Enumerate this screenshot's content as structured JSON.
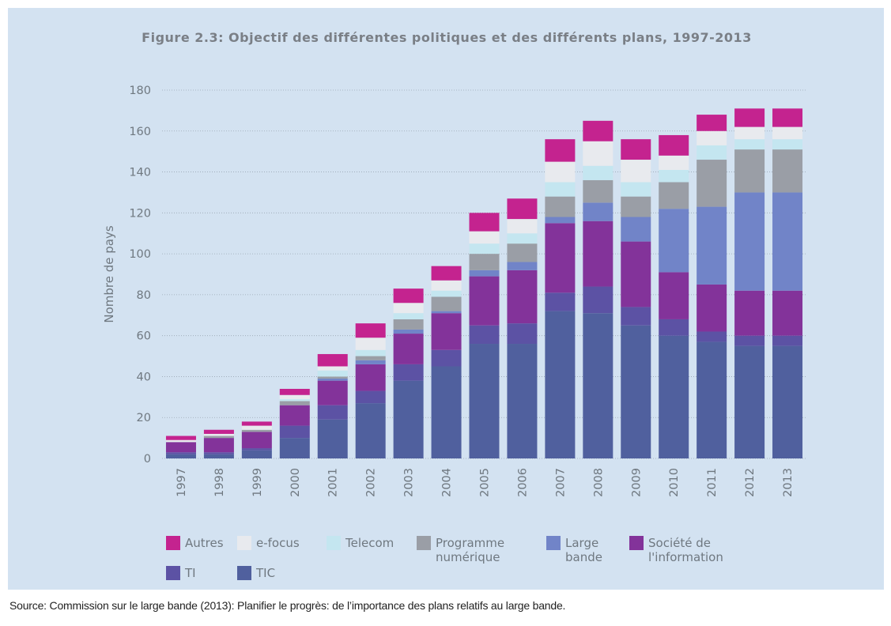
{
  "chart_data": {
    "type": "stacked_bar",
    "title": "Figure 2.3: Objectif des différentes politiques et des différents plans, 1997-2013",
    "ylabel": "Nombre de pays",
    "source": "Source: Commission sur le large bande (2013): Planifier le progrès: de l’importance des plans relatifs au large bande.",
    "categories": [
      "1997",
      "1998",
      "1999",
      "2000",
      "2001",
      "2002",
      "2003",
      "2004",
      "2005",
      "2006",
      "2007",
      "2008",
      "2009",
      "2010",
      "2011",
      "2012",
      "2013"
    ],
    "series": [
      {
        "name": "TIC",
        "color": "#50609e",
        "values": [
          2,
          2,
          4,
          10,
          19,
          27,
          38,
          45,
          56,
          56,
          72,
          71,
          65,
          60,
          57,
          55,
          55
        ]
      },
      {
        "name": "TI",
        "color": "#5c52a4",
        "values": [
          1,
          1,
          1,
          6,
          7,
          6,
          8,
          8,
          9,
          10,
          9,
          13,
          9,
          8,
          5,
          5,
          5
        ]
      },
      {
        "name": "Société de l'information",
        "color": "#83339a",
        "values": [
          5,
          7,
          8,
          10,
          12,
          13,
          15,
          18,
          24,
          26,
          34,
          32,
          32,
          23,
          23,
          22,
          22
        ]
      },
      {
        "name": "Large bande",
        "color": "#7184c8",
        "values": [
          0,
          0,
          0,
          0,
          1,
          2,
          2,
          1,
          3,
          4,
          3,
          9,
          12,
          31,
          38,
          48,
          48
        ]
      },
      {
        "name": "Programme numérique",
        "color": "#9a9ea6",
        "values": [
          0,
          1,
          1,
          2,
          1,
          2,
          5,
          7,
          8,
          9,
          10,
          11,
          10,
          13,
          23,
          21,
          21
        ]
      },
      {
        "name": "Telecom",
        "color": "#c4e6f0",
        "values": [
          0,
          0,
          0,
          1,
          3,
          3,
          3,
          3,
          5,
          5,
          7,
          7,
          7,
          6,
          7,
          5,
          5
        ]
      },
      {
        "name": "e-focus",
        "color": "#e8eaee",
        "values": [
          1,
          1,
          2,
          2,
          2,
          6,
          5,
          5,
          6,
          7,
          10,
          12,
          11,
          7,
          7,
          6,
          6
        ]
      },
      {
        "name": "Autres",
        "color": "#c4238f",
        "values": [
          2,
          2,
          2,
          3,
          6,
          7,
          7,
          7,
          9,
          10,
          11,
          10,
          10,
          10,
          8,
          9,
          9
        ]
      }
    ],
    "legend_order": [
      7,
      6,
      5,
      4,
      3,
      2,
      1,
      0
    ],
    "ylim": [
      0,
      180
    ],
    "yticks": [
      0,
      20,
      40,
      60,
      80,
      100,
      120,
      140,
      160,
      180
    ],
    "grid": true
  }
}
